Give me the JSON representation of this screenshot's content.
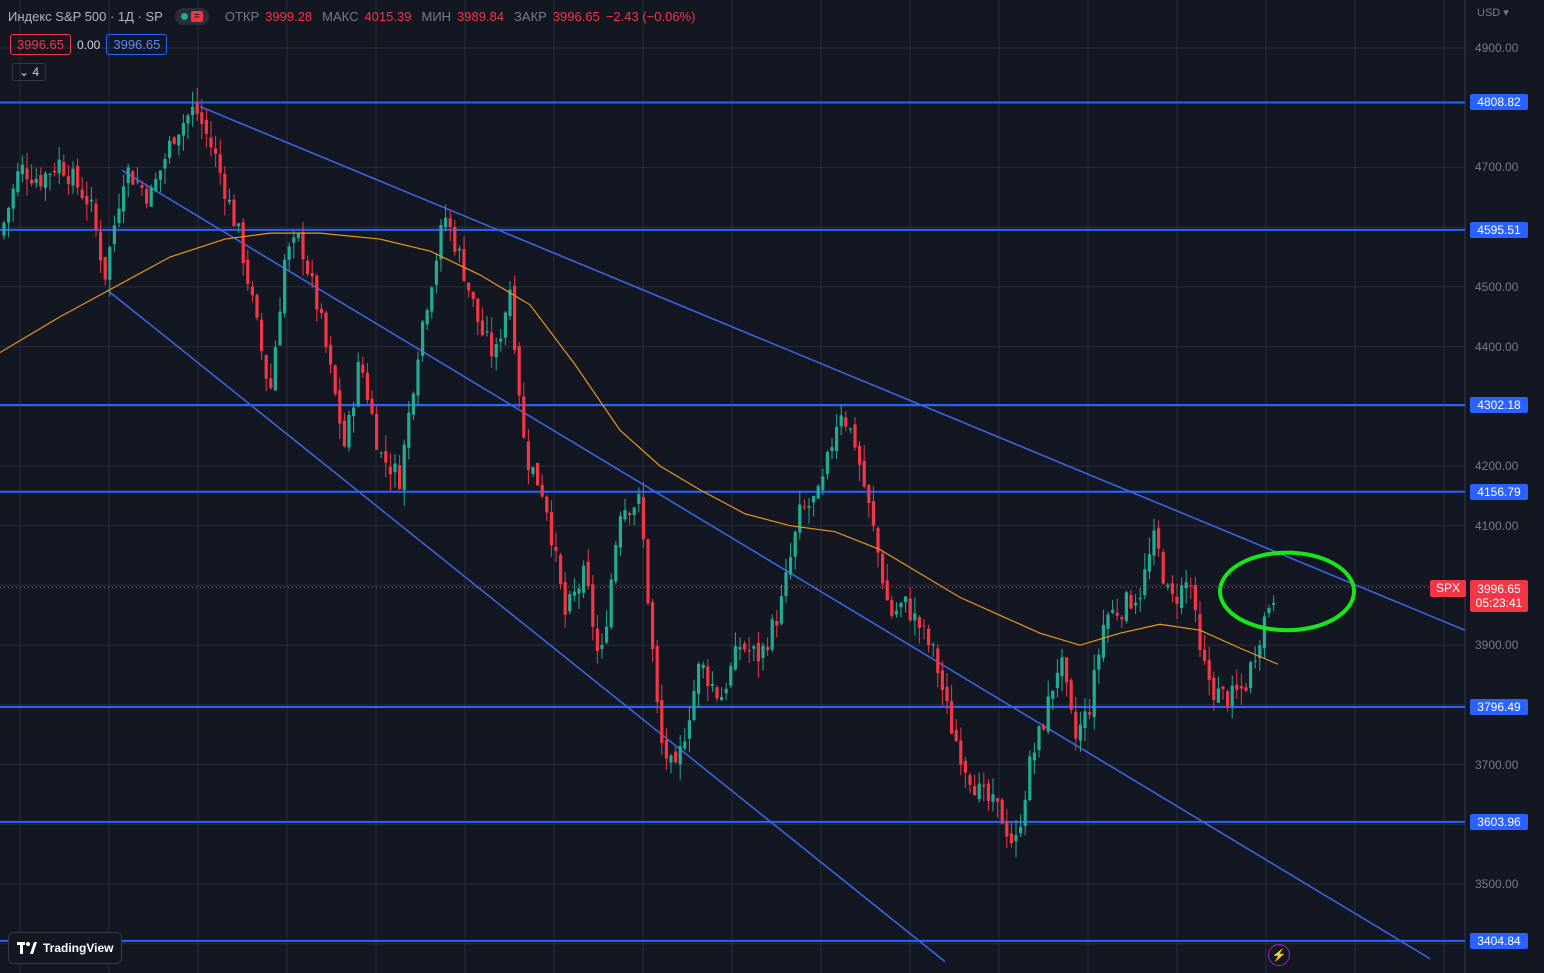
{
  "header": {
    "symbol": "Индекс S&P 500 · 1Д · SP",
    "open_label": "ОТКР",
    "open": "3999.28",
    "high_label": "МАКС",
    "high": "4015.39",
    "low_label": "МИН",
    "low": "3989.84",
    "close_label": "ЗАКР",
    "close": "3996.65",
    "change": "−2.43 (−0.06%)"
  },
  "order_row": {
    "sell": "3996.65",
    "spread": "0.00",
    "buy": "3996.65"
  },
  "indicators_toggle": {
    "count": "4"
  },
  "axis": {
    "currency": "USD",
    "ticks": [
      "4900.00",
      "4700.00",
      "4500.00",
      "4400.00",
      "4200.00",
      "4100.00",
      "3900.00",
      "3700.00",
      "3500.00"
    ]
  },
  "levels": [
    "4808.82",
    "4595.51",
    "4302.18",
    "4156.79",
    "3796.49",
    "3603.96",
    "3404.84"
  ],
  "last_price": {
    "symbol": "SPX",
    "price": "3996.65",
    "countdown": "05:23:41"
  },
  "branding": {
    "name": "TradingView"
  },
  "colors": {
    "background": "#131722",
    "grid": "#2a2e39",
    "up": "#22ab94",
    "down": "#f23645",
    "level_line": "#2962ff",
    "channel_line": "#3a63e0",
    "ma_line": "#e8961e",
    "highlight": "#19e619"
  },
  "chart_data": {
    "type": "candlestick",
    "symbol": "Индекс S&P 500",
    "interval": "1Д",
    "ylim": [
      3370,
      4990
    ],
    "horizontal_levels": [
      4808.82,
      4595.51,
      4302.18,
      4156.79,
      3796.49,
      3603.96,
      3404.84
    ],
    "last_close": 3996.65,
    "ohlc_last": {
      "open": 3999.28,
      "high": 4015.39,
      "low": 3989.84,
      "close": 3996.65
    },
    "close_path": [
      [
        0,
        4585
      ],
      [
        20,
        4700
      ],
      [
        40,
        4680
      ],
      [
        60,
        4710
      ],
      [
        90,
        4640
      ],
      [
        105,
        4520
      ],
      [
        125,
        4700
      ],
      [
        150,
        4650
      ],
      [
        175,
        4760
      ],
      [
        195,
        4800
      ],
      [
        215,
        4720
      ],
      [
        240,
        4580
      ],
      [
        255,
        4450
      ],
      [
        270,
        4320
      ],
      [
        285,
        4550
      ],
      [
        300,
        4580
      ],
      [
        320,
        4450
      ],
      [
        345,
        4230
      ],
      [
        360,
        4380
      ],
      [
        380,
        4220
      ],
      [
        400,
        4180
      ],
      [
        420,
        4420
      ],
      [
        445,
        4620
      ],
      [
        460,
        4550
      ],
      [
        480,
        4430
      ],
      [
        495,
        4380
      ],
      [
        510,
        4500
      ],
      [
        525,
        4220
      ],
      [
        545,
        4150
      ],
      [
        565,
        3950
      ],
      [
        585,
        4020
      ],
      [
        600,
        3860
      ],
      [
        620,
        4130
      ],
      [
        640,
        4140
      ],
      [
        660,
        3740
      ],
      [
        675,
        3680
      ],
      [
        700,
        3870
      ],
      [
        720,
        3810
      ],
      [
        740,
        3900
      ],
      [
        760,
        3880
      ],
      [
        780,
        3960
      ],
      [
        800,
        4120
      ],
      [
        820,
        4150
      ],
      [
        840,
        4300
      ],
      [
        855,
        4240
      ],
      [
        875,
        4080
      ],
      [
        890,
        3950
      ],
      [
        905,
        3970
      ],
      [
        920,
        3930
      ],
      [
        935,
        3880
      ],
      [
        950,
        3770
      ],
      [
        965,
        3700
      ],
      [
        980,
        3650
      ],
      [
        1000,
        3620
      ],
      [
        1015,
        3560
      ],
      [
        1030,
        3700
      ],
      [
        1045,
        3780
      ],
      [
        1060,
        3880
      ],
      [
        1075,
        3740
      ],
      [
        1090,
        3800
      ],
      [
        1105,
        3950
      ],
      [
        1120,
        3960
      ],
      [
        1140,
        3990
      ],
      [
        1155,
        4080
      ],
      [
        1170,
        3970
      ],
      [
        1190,
        4010
      ],
      [
        1200,
        3880
      ],
      [
        1215,
        3820
      ],
      [
        1230,
        3810
      ],
      [
        1245,
        3830
      ],
      [
        1260,
        3920
      ],
      [
        1270,
        3975
      ],
      [
        1278,
        3997
      ]
    ],
    "moving_average": [
      [
        0,
        4390
      ],
      [
        60,
        4450
      ],
      [
        115,
        4500
      ],
      [
        170,
        4550
      ],
      [
        225,
        4580
      ],
      [
        270,
        4590
      ],
      [
        320,
        4590
      ],
      [
        380,
        4580
      ],
      [
        430,
        4560
      ],
      [
        480,
        4520
      ],
      [
        530,
        4470
      ],
      [
        575,
        4370
      ],
      [
        620,
        4260
      ],
      [
        660,
        4200
      ],
      [
        700,
        4160
      ],
      [
        745,
        4120
      ],
      [
        790,
        4100
      ],
      [
        835,
        4090
      ],
      [
        880,
        4060
      ],
      [
        920,
        4020
      ],
      [
        960,
        3980
      ],
      [
        1000,
        3950
      ],
      [
        1040,
        3920
      ],
      [
        1080,
        3900
      ],
      [
        1120,
        3920
      ],
      [
        1160,
        3935
      ],
      [
        1200,
        3925
      ],
      [
        1240,
        3895
      ],
      [
        1278,
        3868
      ]
    ],
    "trendlines": [
      {
        "from": [
          200,
          4802
        ],
        "to": [
          1465,
          3925
        ]
      },
      {
        "from": [
          122,
          4695
        ],
        "to": [
          1430,
          3375
        ]
      },
      {
        "from": [
          107,
          4495
        ],
        "to": [
          945,
          3370
        ]
      }
    ],
    "highlight_ellipse": {
      "center": [
        1287,
        3990
      ],
      "rx": 67,
      "ry_price": 65
    }
  }
}
